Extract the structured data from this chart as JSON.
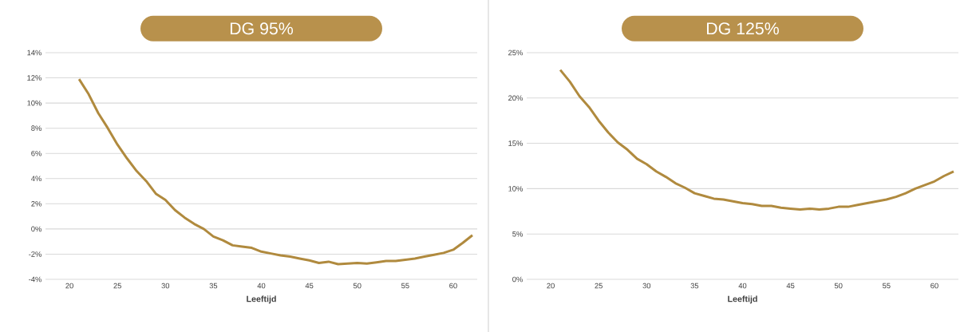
{
  "chart_data": [
    {
      "type": "line",
      "title": "DG 95%",
      "xlabel": "Leeftijd",
      "grid": "y",
      "line_style": "solid",
      "color": "#b08a3e",
      "x": [
        21,
        22,
        23,
        24,
        25,
        26,
        27,
        28,
        29,
        30,
        31,
        32,
        33,
        34,
        35,
        36,
        37,
        38,
        39,
        40,
        41,
        42,
        43,
        44,
        45,
        46,
        47,
        48,
        49,
        50,
        51,
        52,
        53,
        54,
        55,
        56,
        57,
        58,
        59,
        60,
        61,
        62
      ],
      "values": [
        11.9,
        10.7,
        9.2,
        8.0,
        6.7,
        5.6,
        4.6,
        3.8,
        2.8,
        2.3,
        1.5,
        0.9,
        0.4,
        0.0,
        -0.6,
        -0.9,
        -1.3,
        -1.4,
        -1.5,
        -1.8,
        -1.95,
        -2.1,
        -2.2,
        -2.35,
        -2.5,
        -2.7,
        -2.6,
        -2.8,
        -2.75,
        -2.7,
        -2.75,
        -2.65,
        -2.55,
        -2.55,
        -2.45,
        -2.35,
        -2.2,
        -2.05,
        -1.9,
        -1.65,
        -1.1,
        -0.5
      ],
      "xlim": [
        17.5,
        62.5
      ],
      "xticks": [
        20,
        25,
        30,
        35,
        40,
        45,
        50,
        55,
        60
      ],
      "ylim": [
        -4,
        14
      ],
      "yticks": [
        {
          "value": -4,
          "label": "-4%"
        },
        {
          "value": -2,
          "label": "-2%"
        },
        {
          "value": 0,
          "label": "0%"
        },
        {
          "value": 2,
          "label": "2%"
        },
        {
          "value": 4,
          "label": "4%"
        },
        {
          "value": 6,
          "label": "6%"
        },
        {
          "value": 8,
          "label": "8%"
        },
        {
          "value": 10,
          "label": "10%"
        },
        {
          "value": 12,
          "label": "12%"
        },
        {
          "value": 14,
          "label": "14%"
        }
      ]
    },
    {
      "type": "line",
      "title": "DG 125%",
      "xlabel": "Leeftijd",
      "grid": "y",
      "line_style": "solid",
      "color": "#b08a3e",
      "x": [
        21,
        22,
        23,
        24,
        25,
        26,
        27,
        28,
        29,
        30,
        31,
        32,
        33,
        34,
        35,
        36,
        37,
        38,
        39,
        40,
        41,
        42,
        43,
        44,
        45,
        46,
        47,
        48,
        49,
        50,
        51,
        52,
        53,
        54,
        55,
        56,
        57,
        58,
        59,
        60,
        61,
        62
      ],
      "values": [
        23.1,
        21.8,
        20.2,
        19.0,
        17.5,
        16.2,
        15.1,
        14.3,
        13.3,
        12.7,
        11.9,
        11.3,
        10.6,
        10.1,
        9.5,
        9.2,
        8.9,
        8.8,
        8.6,
        8.4,
        8.3,
        8.1,
        8.1,
        7.9,
        7.8,
        7.7,
        7.8,
        7.7,
        7.8,
        8.0,
        8.0,
        8.2,
        8.4,
        8.6,
        8.8,
        9.1,
        9.5,
        10.0,
        10.4,
        10.8,
        11.4,
        11.9
      ],
      "xlim": [
        17.5,
        62.5
      ],
      "xticks": [
        20,
        25,
        30,
        35,
        40,
        45,
        50,
        55,
        60
      ],
      "ylim": [
        0,
        25
      ],
      "yticks": [
        {
          "value": 0,
          "label": "0%"
        },
        {
          "value": 5,
          "label": "5%"
        },
        {
          "value": 10,
          "label": "10%"
        },
        {
          "value": 15,
          "label": "15%"
        },
        {
          "value": 20,
          "label": "20%"
        },
        {
          "value": 25,
          "label": "25%"
        }
      ]
    }
  ]
}
